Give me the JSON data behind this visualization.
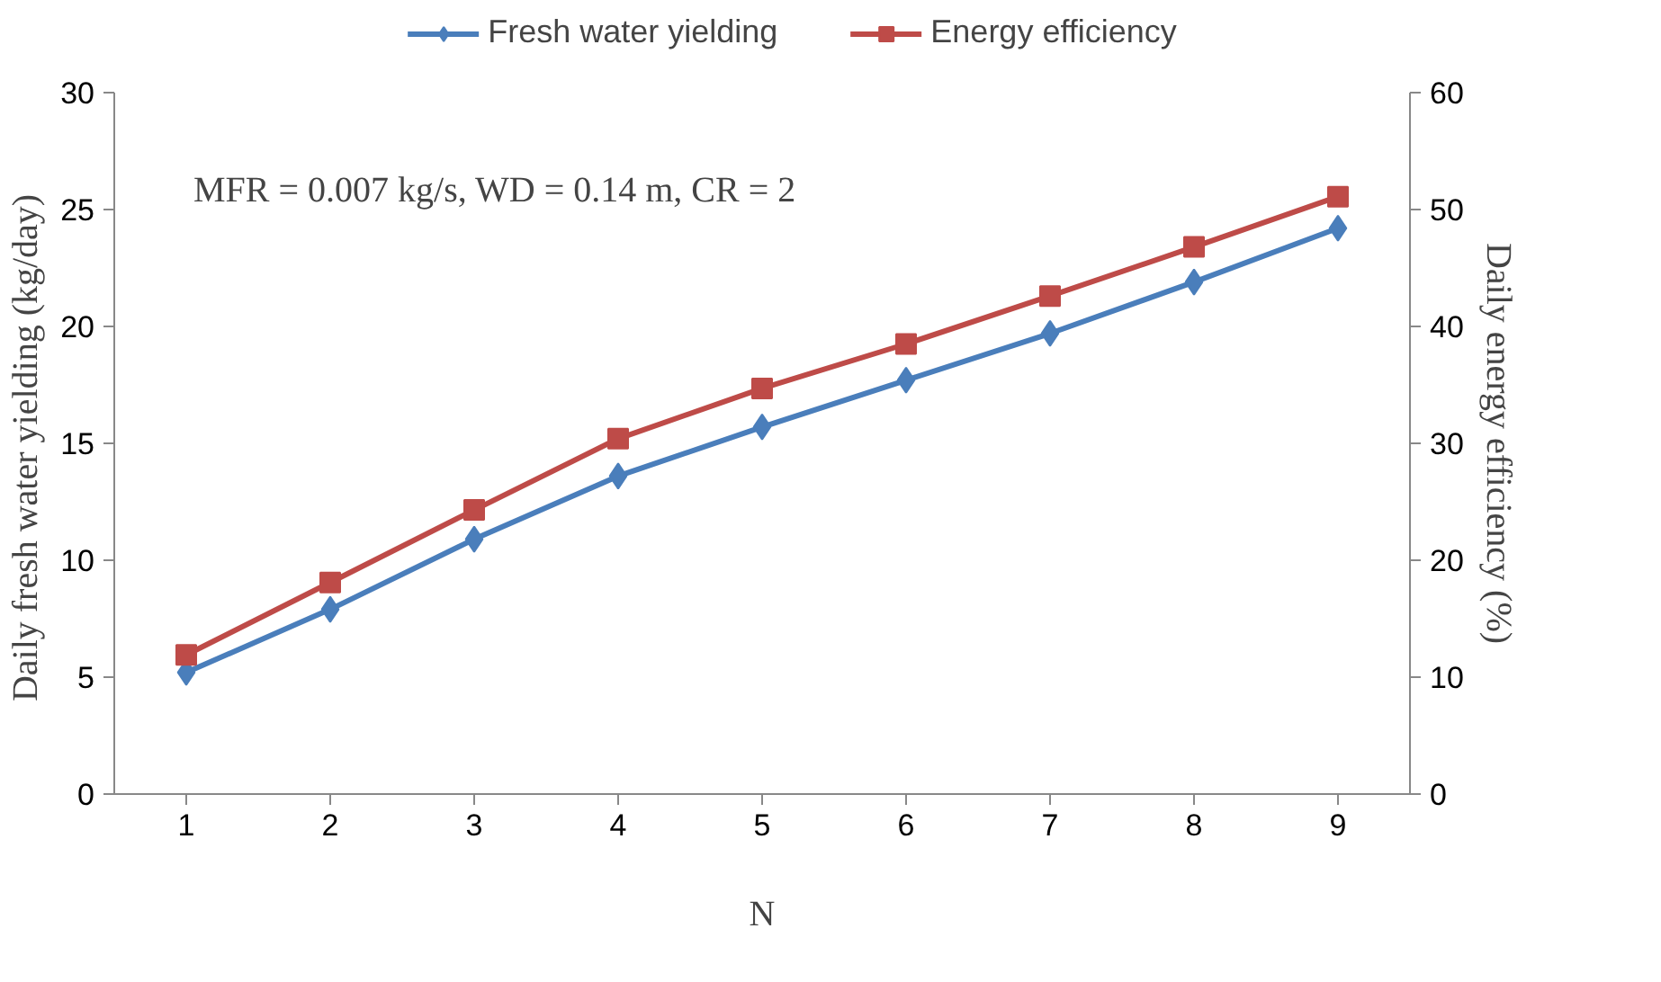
{
  "chart_data": {
    "type": "line",
    "xlabel": "N",
    "ylabel": "Daily  fresh water yielding (kg/day)",
    "y2label": "Daily energy efficiency (%)",
    "categories": [
      "1",
      "2",
      "3",
      "4",
      "5",
      "6",
      "7",
      "8",
      "9"
    ],
    "series": [
      {
        "name": "Fresh water yielding",
        "color": "#4a7ebb",
        "marker": "diamond",
        "values": [
          5.2,
          7.9,
          10.9,
          13.6,
          15.7,
          17.7,
          19.7,
          21.9,
          24.2
        ]
      },
      {
        "name": "Energy efficiency",
        "color": "#be4b48",
        "marker": "square",
        "axis": "y2",
        "values": [
          11.9,
          18.1,
          24.3,
          30.4,
          34.7,
          38.5,
          42.6,
          46.8,
          51.1
        ]
      }
    ],
    "ylim": [
      0,
      30
    ],
    "yticks": [
      0,
      5,
      10,
      15,
      20,
      25,
      30
    ],
    "y2lim": [
      0,
      60
    ],
    "y2ticks": [
      0,
      10,
      20,
      30,
      40,
      50,
      60
    ],
    "annotations": [
      "MFR = 0.007  kg/s, WD = 0.14  m, CR = 2"
    ],
    "legend": "top",
    "grid": false,
    "line_style": "solid"
  }
}
